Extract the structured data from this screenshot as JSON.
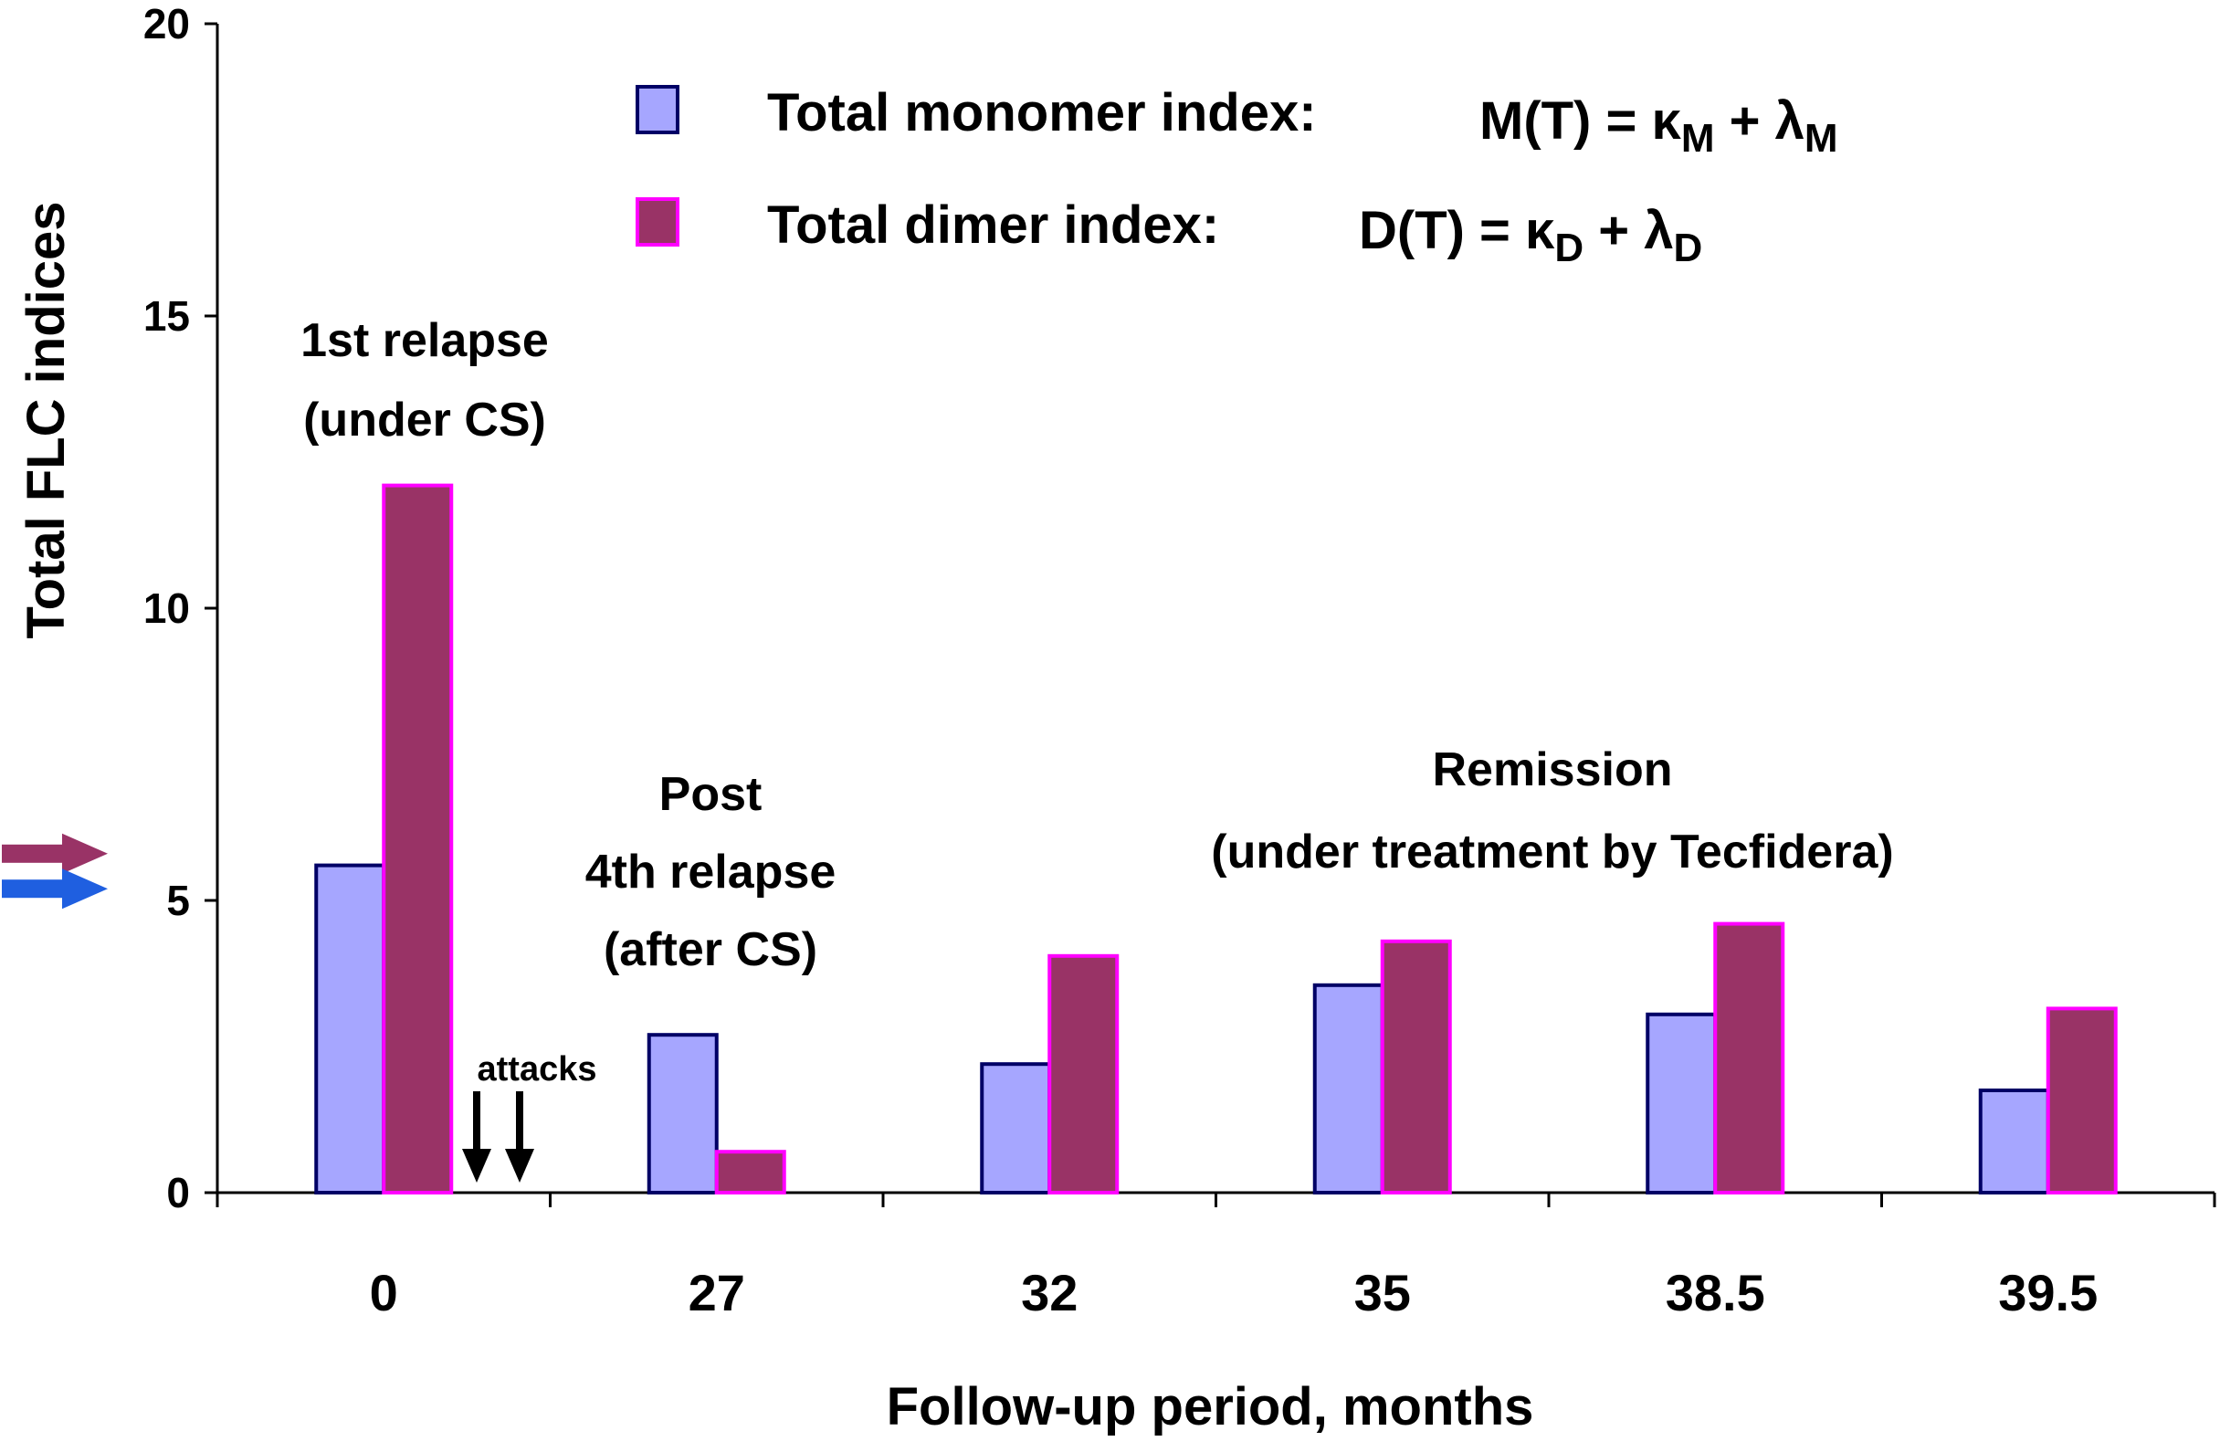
{
  "chart_data": {
    "type": "bar",
    "title": "",
    "xlabel": "Follow-up period, months",
    "ylabel": "Total FLC indices",
    "ylim": [
      0,
      20
    ],
    "yticks": [
      "0",
      "5",
      "10",
      "15",
      "20"
    ],
    "categories": [
      "0",
      "27",
      "32",
      "35",
      "38.5",
      "39.5"
    ],
    "series": [
      {
        "name": "Total monomer index:",
        "formula": {
          "lhs": "M(T) = ",
          "a": "κ",
          "a_sub": "M",
          "plus": " + ",
          "b": "λ",
          "b_sub": "M"
        },
        "fill": "#a6a6ff",
        "stroke": "#000066",
        "values": [
          5.6,
          2.7,
          2.2,
          3.55,
          3.05,
          1.75
        ]
      },
      {
        "name": "Total dimer index:",
        "formula": {
          "lhs": "D(T) = ",
          "a": "κ",
          "a_sub": "D",
          "plus": " + ",
          "b": "λ",
          "b_sub": "D"
        },
        "fill": "#993366",
        "stroke": "#ff00ff",
        "values": [
          12.1,
          0.7,
          4.05,
          4.3,
          4.6,
          3.15
        ]
      }
    ],
    "legend_position": "top-center",
    "annotations": {
      "first_relapse": [
        "1st relapse",
        "(under CS)"
      ],
      "post_relapse": [
        "Post",
        "4th relapse",
        "(after CS)"
      ],
      "remission": [
        "Remission",
        "(under treatment by Tecfidera)"
      ],
      "attacks": "attacks"
    },
    "reference_arrows": [
      {
        "series": "dimer",
        "value": 5.8,
        "color": "#993366"
      },
      {
        "series": "monomer",
        "value": 5.2,
        "color": "#1f5fe0"
      }
    ]
  }
}
